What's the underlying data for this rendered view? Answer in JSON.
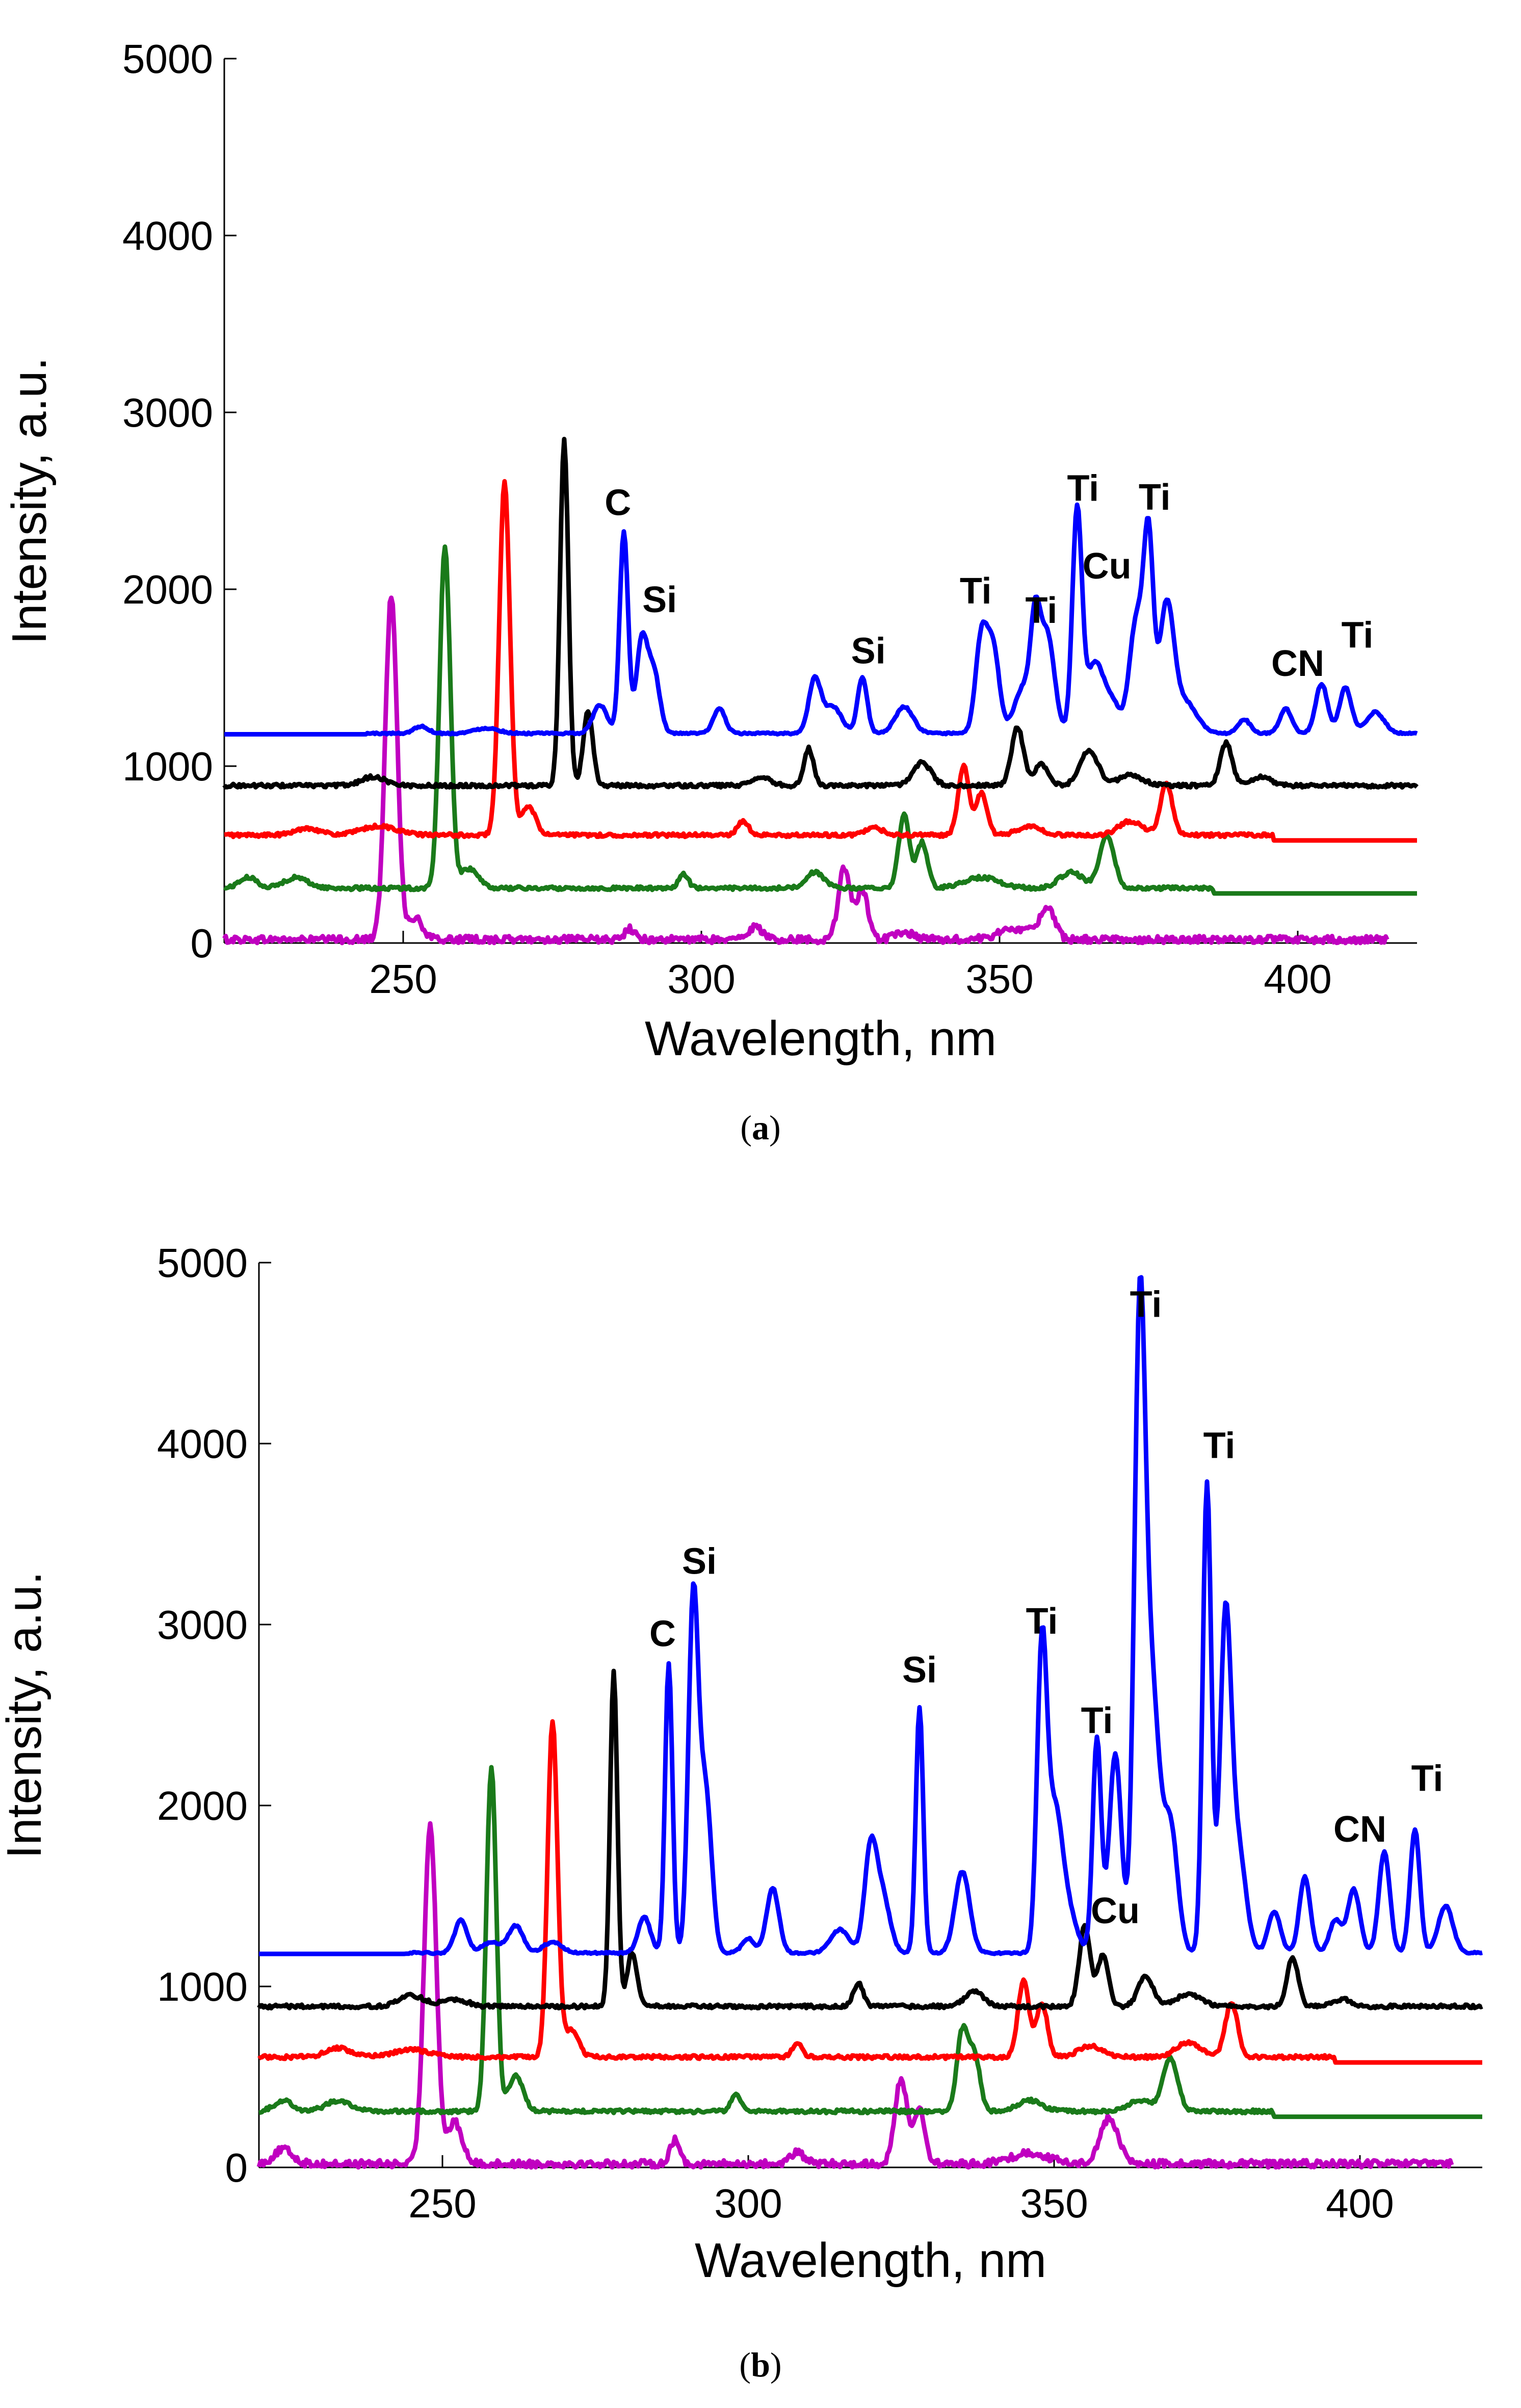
{
  "chart_data": [
    {
      "type": "line",
      "caption_open": "(",
      "caption_letter": "a",
      "caption_close": ")",
      "xlabel": "Wavelength, nm",
      "ylabel": "Intensity, a.u.",
      "xlim": [
        220,
        420
      ],
      "ylim": [
        0,
        5000
      ],
      "xticks": [
        250,
        300,
        350,
        400
      ],
      "yticks": [
        0,
        1000,
        2000,
        3000,
        4000,
        5000
      ],
      "series": [
        {
          "name": "magenta",
          "color": "#c000c0",
          "offset": 0,
          "x_start": 220,
          "x_end": 415,
          "base": 40,
          "peaks": [
            [
              248,
              1950,
              1.0
            ],
            [
              252,
              120,
              1.2
            ],
            [
              288,
              60,
              0.8
            ],
            [
              309,
              70,
              1.2
            ],
            [
              324,
              410,
              1.0
            ],
            [
              327,
              280,
              0.9
            ],
            [
              334,
              40,
              1.5
            ],
            [
              353,
              60,
              3
            ],
            [
              358,
              170,
              1.2
            ]
          ]
        },
        {
          "name": "green",
          "color": "#1a7a1a",
          "offset": 300,
          "x_start": 220,
          "x_end": 420,
          "tail_x": 386,
          "tail_value": 280,
          "base": 20,
          "peaks": [
            [
              224,
              60,
              1.5
            ],
            [
              232,
              60,
              2
            ],
            [
              257,
              1920,
              0.9
            ],
            [
              261,
              110,
              1.5
            ],
            [
              297,
              80,
              0.8
            ],
            [
              319,
              90,
              1.5
            ],
            [
              334,
              420,
              0.9
            ],
            [
              337,
              260,
              0.9
            ],
            [
              347,
              60,
              3
            ],
            [
              362,
              90,
              2
            ],
            [
              368,
              300,
              1.2
            ]
          ]
        },
        {
          "name": "red",
          "color": "#ff0000",
          "offset": 600,
          "x_start": 220,
          "x_end": 420,
          "tail_x": 396,
          "tail_value": 580,
          "base": 20,
          "peaks": [
            [
              234,
              40,
              2
            ],
            [
              246,
              50,
              3
            ],
            [
              267,
              1990,
              0.9
            ],
            [
              271,
              160,
              1.2
            ],
            [
              307,
              80,
              0.9
            ],
            [
              329,
              40,
              1.5
            ],
            [
              344,
              390,
              0.9
            ],
            [
              347,
              240,
              0.9
            ],
            [
              355,
              50,
              2
            ],
            [
              372,
              80,
              2
            ],
            [
              378,
              290,
              1.0
            ]
          ]
        },
        {
          "name": "black",
          "color": "#000000",
          "offset": 880,
          "x_start": 220,
          "x_end": 420,
          "base": 20,
          "peaks": [
            [
              245,
              50,
              2
            ],
            [
              277,
              1950,
              0.7
            ],
            [
              281,
              420,
              0.8
            ],
            [
              310,
              50,
              1.5
            ],
            [
              318,
              210,
              0.8
            ],
            [
              337,
              130,
              1.5
            ],
            [
              353,
              330,
              1.0
            ],
            [
              357,
              120,
              1.2
            ],
            [
              365,
              200,
              1.5
            ],
            [
              372,
              60,
              2
            ],
            [
              388,
              240,
              1.0
            ],
            [
              394,
              50,
              1.5
            ]
          ]
        },
        {
          "name": "blue",
          "color": "#0000ff",
          "offset": 1180,
          "x_start": 220,
          "x_end": 420,
          "base": 10,
          "flat_until": 244,
          "peaks": [
            [
              253,
              40,
              1.2
            ],
            [
              264,
              30,
              2
            ],
            [
              283,
              160,
              1.2
            ],
            [
              287,
              1140,
              0.7
            ],
            [
              290,
              520,
              0.9
            ],
            [
              292,
              350,
              1.0
            ],
            [
              303,
              140,
              1.0
            ],
            [
              319,
              300,
              1.0
            ],
            [
              322,
              150,
              1.5
            ],
            [
              327,
              320,
              0.8
            ],
            [
              334,
              150,
              1.5
            ],
            [
              347,
              550,
              1.0
            ],
            [
              349,
              450,
              1.0
            ],
            [
              354,
              260,
              1.5
            ],
            [
              356,
              520,
              0.8
            ],
            [
              358,
              560,
              1.2
            ],
            [
              363,
              1240,
              0.8
            ],
            [
              366,
              400,
              1.5
            ],
            [
              369,
              150,
              1.2
            ],
            [
              373,
              650,
              1.2
            ],
            [
              375,
              1020,
              0.8
            ],
            [
              378,
              700,
              1.2
            ],
            [
              381,
              180,
              2
            ],
            [
              391,
              80,
              1.0
            ],
            [
              398,
              140,
              1.0
            ],
            [
              404,
              280,
              1.0
            ],
            [
              408,
              260,
              1.0
            ],
            [
              413,
              120,
              1.5
            ]
          ]
        }
      ],
      "annotations": [
        {
          "text": "C",
          "x": 286,
          "y": 2420
        },
        {
          "text": "Si",
          "x": 293,
          "y": 1870
        },
        {
          "text": "Si",
          "x": 328,
          "y": 1580
        },
        {
          "text": "Ti",
          "x": 346,
          "y": 1920
        },
        {
          "text": "Ti",
          "x": 357,
          "y": 1810
        },
        {
          "text": "Ti",
          "x": 364,
          "y": 2500
        },
        {
          "text": "Cu",
          "x": 368,
          "y": 2060
        },
        {
          "text": "Ti",
          "x": 376,
          "y": 2450
        },
        {
          "text": "CN",
          "x": 400,
          "y": 1510
        },
        {
          "text": "Ti",
          "x": 410,
          "y": 1670
        }
      ]
    },
    {
      "type": "line",
      "caption_open": "(",
      "caption_letter": "b",
      "caption_close": ")",
      "xlabel": "Wavelength, nm",
      "ylabel": "Intensity, a.u.",
      "xlim": [
        220,
        420
      ],
      "ylim": [
        0,
        5000
      ],
      "xticks": [
        250,
        300,
        350,
        400
      ],
      "yticks": [
        0,
        1000,
        2000,
        3000,
        4000,
        5000
      ],
      "series": [
        {
          "name": "magenta",
          "color": "#c000c0",
          "offset": 0,
          "x_start": 220,
          "x_end": 415,
          "base": 40,
          "peaks": [
            [
              224,
              80,
              1.5
            ],
            [
              248,
              1880,
              1.0
            ],
            [
              252,
              230,
              1.2
            ],
            [
              288,
              130,
              0.8
            ],
            [
              308,
              60,
              1.2
            ],
            [
              325,
              470,
              1.0
            ],
            [
              328,
              300,
              0.9
            ],
            [
              346,
              60,
              3
            ],
            [
              359,
              250,
              1.5
            ]
          ]
        },
        {
          "name": "green",
          "color": "#1a7a1a",
          "offset": 300,
          "x_start": 220,
          "x_end": 420,
          "tail_x": 386,
          "tail_value": 280,
          "base": 20,
          "peaks": [
            [
              224,
              60,
              1.5
            ],
            [
              233,
              60,
              2
            ],
            [
              258,
              1900,
              0.8
            ],
            [
              262,
              200,
              1.2
            ],
            [
              298,
              100,
              0.8
            ],
            [
              335,
              440,
              0.9
            ],
            [
              337,
              300,
              0.9
            ],
            [
              346,
              60,
              2
            ],
            [
              364,
              60,
              2
            ],
            [
              369,
              290,
              1.2
            ]
          ]
        },
        {
          "name": "red",
          "color": "#ff0000",
          "offset": 600,
          "x_start": 220,
          "x_end": 420,
          "tail_x": 396,
          "tail_value": 580,
          "base": 20,
          "peaks": [
            [
              233,
              50,
              2
            ],
            [
              245,
              40,
              3
            ],
            [
              268,
              1850,
              0.8
            ],
            [
              271,
              150,
              1.2
            ],
            [
              308,
              80,
              0.8
            ],
            [
              345,
              420,
              0.9
            ],
            [
              348,
              300,
              0.9
            ],
            [
              356,
              60,
              2
            ],
            [
              372,
              80,
              2
            ],
            [
              379,
              300,
              1.0
            ]
          ]
        },
        {
          "name": "black",
          "color": "#000000",
          "offset": 880,
          "x_start": 220,
          "x_end": 420,
          "base": 20,
          "peaks": [
            [
              245,
              60,
              2
            ],
            [
              252,
              40,
              2
            ],
            [
              278,
              1850,
              0.6
            ],
            [
              281,
              300,
              0.8
            ],
            [
              318,
              130,
              0.8
            ],
            [
              337,
              80,
              1.5
            ],
            [
              355,
              440,
              0.9
            ],
            [
              358,
              280,
              0.9
            ],
            [
              365,
              170,
              1.2
            ],
            [
              372,
              70,
              2
            ],
            [
              389,
              270,
              0.9
            ],
            [
              397,
              40,
              1.5
            ]
          ]
        },
        {
          "name": "blue",
          "color": "#0000ff",
          "offset": 1180,
          "x_start": 220,
          "x_end": 420,
          "base": 10,
          "flat_until": 244,
          "peaks": [
            [
              253,
              180,
              1.0
            ],
            [
              258,
              60,
              1.5
            ],
            [
              262,
              150,
              1.2
            ],
            [
              268,
              60,
              1.5
            ],
            [
              283,
              200,
              1.0
            ],
            [
              287,
              1600,
              0.6
            ],
            [
              291,
              1920,
              0.8
            ],
            [
              293,
              900,
              1.0
            ],
            [
              300,
              80,
              1.0
            ],
            [
              304,
              360,
              1.0
            ],
            [
              315,
              130,
              1.5
            ],
            [
              320,
              560,
              1.0
            ],
            [
              322,
              300,
              1.2
            ],
            [
              328,
              1360,
              0.6
            ],
            [
              335,
              450,
              1.2
            ],
            [
              348,
              1620,
              0.8
            ],
            [
              350,
              700,
              1.2
            ],
            [
              352,
              250,
              1.5
            ],
            [
              357,
              1180,
              0.7
            ],
            [
              360,
              1100,
              1.0
            ],
            [
              364,
              3380,
              0.9
            ],
            [
              366,
              1400,
              1.2
            ],
            [
              369,
              700,
              1.2
            ],
            [
              375,
              2600,
              0.7
            ],
            [
              378,
              1750,
              0.9
            ],
            [
              380,
              600,
              1.3
            ],
            [
              386,
              230,
              1.0
            ],
            [
              391,
              420,
              0.9
            ],
            [
              396,
              180,
              1.0
            ],
            [
              399,
              350,
              1.0
            ],
            [
              404,
              560,
              0.9
            ],
            [
              409,
              680,
              0.8
            ],
            [
              414,
              260,
              1.2
            ]
          ]
        }
      ],
      "annotations": [
        {
          "text": "C",
          "x": 286,
          "y": 2880
        },
        {
          "text": "Si",
          "x": 292,
          "y": 3280
        },
        {
          "text": "Si",
          "x": 328,
          "y": 2680
        },
        {
          "text": "Ti",
          "x": 348,
          "y": 2950
        },
        {
          "text": "Ti",
          "x": 357,
          "y": 2400
        },
        {
          "text": "Cu",
          "x": 360,
          "y": 1350
        },
        {
          "text": "Ti",
          "x": 365,
          "y": 4700
        },
        {
          "text": "Ti",
          "x": 377,
          "y": 3920
        },
        {
          "text": "CN",
          "x": 400,
          "y": 1800
        },
        {
          "text": "Ti",
          "x": 411,
          "y": 2080
        }
      ]
    }
  ]
}
